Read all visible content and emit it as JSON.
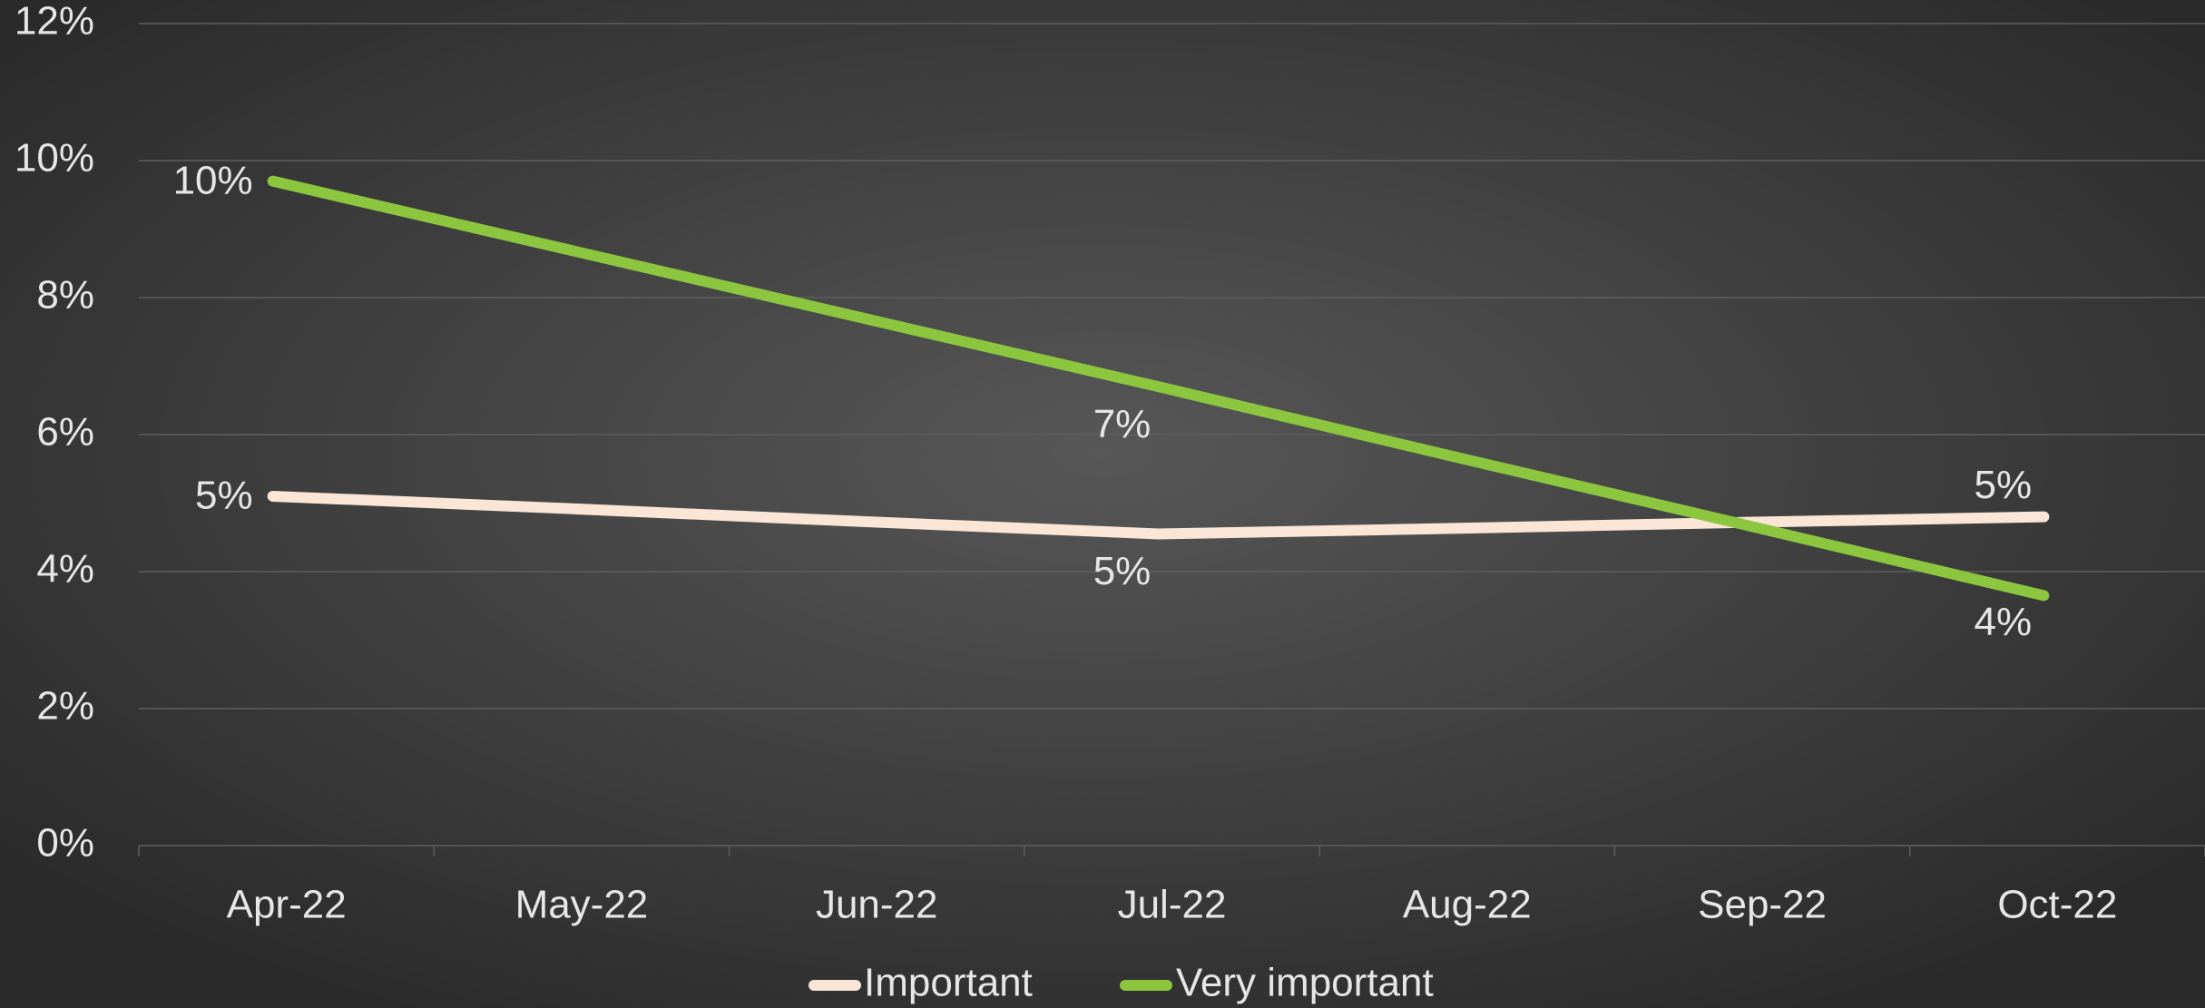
{
  "chart_data": {
    "type": "line",
    "categories": [
      "Apr-22",
      "May-22",
      "Jun-22",
      "Jul-22",
      "Aug-22",
      "Sep-22",
      "Oct-22"
    ],
    "series": [
      {
        "name": "Important",
        "color": "#fbe5d6",
        "values": [
          5.1,
          4.92,
          4.73,
          4.55,
          4.63,
          4.72,
          4.8
        ],
        "value_labels": [
          "5%",
          null,
          null,
          "5%",
          null,
          null,
          "5%"
        ]
      },
      {
        "name": "Very important",
        "color": "#8cc63f",
        "values": [
          9.7,
          8.7,
          7.7,
          6.7,
          5.68,
          4.67,
          3.65
        ],
        "value_labels": [
          "10%",
          null,
          null,
          "7%",
          null,
          null,
          "4%"
        ]
      }
    ],
    "ylim": [
      0,
      12
    ],
    "yticks": [
      {
        "value": 0,
        "label": "0%"
      },
      {
        "value": 2,
        "label": "2%"
      },
      {
        "value": 4,
        "label": "4%"
      },
      {
        "value": 6,
        "label": "6%"
      },
      {
        "value": 8,
        "label": "8%"
      },
      {
        "value": 10,
        "label": "10%"
      },
      {
        "value": 12,
        "label": "12%"
      }
    ],
    "grid": true,
    "legend": "bottom"
  }
}
